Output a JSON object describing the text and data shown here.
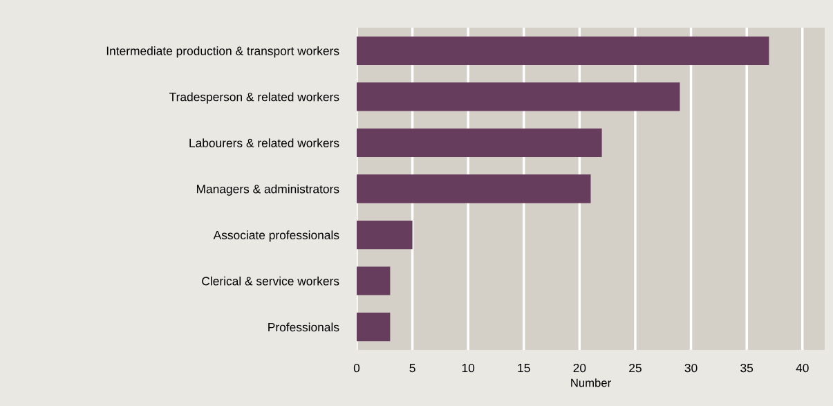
{
  "chart_data": {
    "type": "bar",
    "orientation": "horizontal",
    "xlabel": "Number",
    "categories": [
      "Intermediate production & transport workers",
      "Tradesperson & related workers",
      "Labourers & related workers",
      "Managers & administrators",
      "Associate professionals",
      "Clerical & service workers",
      "Professionals"
    ],
    "values": [
      37,
      29,
      22,
      21,
      5,
      3,
      3
    ],
    "color": "#673d5e",
    "xlim": [
      0,
      42
    ],
    "xticks": [
      0,
      5,
      10,
      15,
      20,
      25,
      30,
      35,
      40
    ],
    "grid": "x",
    "legend": false
  }
}
